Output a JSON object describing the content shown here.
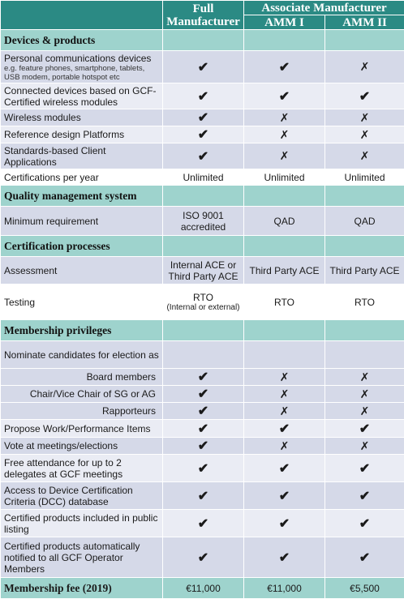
{
  "header": {
    "col1": "Full Manufacturer",
    "assoc_group": "Associate Manufacturer",
    "col2": "AMM I",
    "col3": "AMM II"
  },
  "icons": {
    "check": "✔",
    "cross": "✗"
  },
  "sections": {
    "devices": "Devices & products",
    "quality": "Quality management system",
    "cert": "Certification processes",
    "membership": "Membership privileges",
    "fee": "Membership fee (2019)"
  },
  "rows": {
    "personal": {
      "label": "Personal communications devices",
      "sub": "e.g. feature phones, smartphone, tablets, USB modem, portable hotspot etc"
    },
    "connected": {
      "label": "Connected devices based on GCF-Certified wireless modules"
    },
    "modules": {
      "label": "Wireless modules"
    },
    "refdesign": {
      "label": "Reference design Platforms"
    },
    "clientapps": {
      "label": "Standards-based Client Applications"
    },
    "certs_per_year": {
      "label": "Certifications per year",
      "v1": "Unlimited",
      "v2": "Unlimited",
      "v3": "Unlimited"
    },
    "min_req": {
      "label": "Minimum requirement",
      "v1": "ISO 9001 accredited",
      "v2": "QAD",
      "v3": "QAD"
    },
    "assessment": {
      "label": "Assessment",
      "v1": "Internal ACE or Third Party ACE",
      "v2": "Third Party ACE",
      "v3": "Third Party ACE"
    },
    "testing": {
      "label": "Testing",
      "v1": "RTO",
      "v1_sub": "(Internal or external)",
      "v2": "RTO",
      "v3": "RTO"
    },
    "nominate": {
      "label": "Nominate candidates for election as"
    },
    "board": {
      "label": "Board members"
    },
    "chair": {
      "label": "Chair/Vice Chair of SG or AG"
    },
    "rapporteurs": {
      "label": "Rapporteurs"
    },
    "propose": {
      "label": "Propose Work/Performance Items"
    },
    "vote": {
      "label": "Vote at meetings/elections"
    },
    "attendance": {
      "label": "Free attendance for up to 2 delegates at GCF meetings"
    },
    "dcc": {
      "label": "Access to Device Certification Criteria (DCC) database"
    },
    "listing": {
      "label": "Certified products included in public listing"
    },
    "notified": {
      "label": "Certified products automatically notified to all GCF Operator Members"
    }
  },
  "fee": {
    "v1": "€11,000",
    "v2": "€11,000",
    "v3": "€5,500"
  }
}
